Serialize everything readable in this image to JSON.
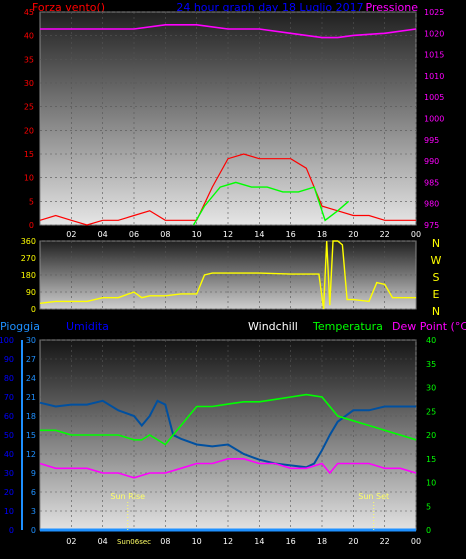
{
  "header": {
    "wind_label": "Forza vento()",
    "title": "24 hour graph day  18 Luglio 2017",
    "pressure_label": "Pressione"
  },
  "bottom_header": {
    "rain_label": "Pioggia",
    "humidity_label": "Umidita",
    "windchill_label": "Windchill",
    "temperature_label": "Temperatura",
    "dewpoint_label": "Dew Point (°C)"
  },
  "colors": {
    "wind": "#ff0000",
    "gust_avg": "#00ff00",
    "pressure": "#ff00ff",
    "direction": "#ffff00",
    "humidity": "#0050a0",
    "temperature": "#00ff00",
    "dewpoint": "#ff00ff",
    "rain": "#1e90ff",
    "axis_blue": "#0000ff"
  },
  "chart_data": [
    {
      "type": "line",
      "name": "wind-pressure",
      "x_ticks": [
        "02",
        "04",
        "06",
        "08",
        "10",
        "12",
        "14",
        "16",
        "18",
        "20",
        "22",
        "00"
      ],
      "ylim_left": [
        0,
        45
      ],
      "yticks_left": [
        0,
        5,
        10,
        15,
        20,
        25,
        30,
        35,
        40,
        45
      ],
      "ylim_right": [
        975,
        1025
      ],
      "yticks_right": [
        975,
        980,
        985,
        990,
        995,
        1000,
        1005,
        1010,
        1015,
        1020,
        1025
      ],
      "wind_speed": {
        "hours": [
          0,
          1,
          2,
          3,
          4,
          5,
          6,
          7,
          8,
          9,
          10,
          11,
          12,
          13,
          14,
          15,
          16,
          17,
          18,
          19,
          20,
          21,
          22,
          23,
          24
        ],
        "values": [
          1,
          2,
          1,
          0,
          1,
          1,
          2,
          3,
          1,
          1,
          1,
          8,
          14,
          15,
          14,
          14,
          14,
          12,
          4,
          3,
          2,
          2,
          1,
          1,
          1
        ]
      },
      "wind_avg": {
        "hours": [
          9.8,
          10.5,
          11.5,
          12.5,
          13.5,
          14.5,
          15.5,
          16.5,
          17.5,
          18.2,
          19,
          19.7
        ],
        "values": [
          0,
          4,
          8,
          9,
          8,
          8,
          7,
          7,
          8,
          1,
          3,
          5
        ]
      },
      "pressure": {
        "hours": [
          0,
          2,
          4,
          6,
          8,
          10,
          12,
          14,
          16,
          18,
          19,
          20,
          22,
          24
        ],
        "values": [
          1021,
          1021,
          1021,
          1021,
          1022,
          1022,
          1021,
          1021,
          1020,
          1019,
          1019,
          1019.5,
          1020,
          1021
        ]
      }
    },
    {
      "type": "line",
      "name": "wind-direction",
      "ylim": [
        0,
        360
      ],
      "yticks": [
        0,
        90,
        180,
        270,
        360
      ],
      "compass": [
        "N",
        "W",
        "S",
        "E",
        "N"
      ],
      "direction": {
        "hours": [
          0,
          1,
          3,
          4,
          5,
          6,
          6.5,
          7,
          8,
          9,
          10,
          10.5,
          11,
          12,
          14,
          16,
          17.8,
          18.1,
          18.3,
          18.5,
          18.7,
          19,
          19.3,
          19.6,
          20,
          21,
          21.5,
          22,
          22.5,
          23,
          24
        ],
        "values": [
          30,
          40,
          40,
          60,
          60,
          90,
          60,
          70,
          70,
          80,
          80,
          180,
          190,
          190,
          190,
          185,
          185,
          0,
          360,
          20,
          360,
          360,
          340,
          50,
          50,
          40,
          140,
          130,
          60,
          60,
          60
        ]
      }
    },
    {
      "type": "line",
      "name": "humidity-temperature",
      "x_ticks": [
        "02",
        "04",
        "06",
        "08",
        "10",
        "12",
        "14",
        "16",
        "18",
        "20",
        "22",
        "00"
      ],
      "ylim_left": [
        0,
        100
      ],
      "yticks_left": [
        0,
        10,
        20,
        30,
        40,
        50,
        60,
        70,
        80,
        90,
        100
      ],
      "ylim_rain": [
        0,
        30
      ],
      "yticks_rain": [
        0,
        3,
        6,
        9,
        12,
        15,
        18,
        21,
        24,
        27,
        30
      ],
      "ylim_right": [
        0,
        40
      ],
      "yticks_right": [
        0,
        5,
        10,
        15,
        20,
        25,
        30,
        35,
        40
      ],
      "annotations": [
        "Sun Rise",
        "Sun Set",
        "Sun06sec"
      ],
      "humidity": {
        "hours": [
          0,
          1,
          2,
          3,
          4,
          5,
          6,
          6.5,
          7,
          7.5,
          8,
          8.5,
          9,
          10,
          11,
          12,
          13,
          14,
          15,
          16,
          17,
          17.5,
          18,
          18.5,
          19,
          20,
          21,
          22,
          23,
          24
        ],
        "values": [
          67,
          65,
          66,
          66,
          68,
          63,
          60,
          55,
          60,
          68,
          66,
          50,
          48,
          45,
          44,
          45,
          40,
          37,
          35,
          34,
          33,
          35,
          42,
          50,
          57,
          63,
          63,
          65,
          65,
          65
        ]
      },
      "temperature": {
        "hours": [
          0,
          1,
          2,
          3,
          4,
          5,
          6,
          6.5,
          7,
          8,
          9,
          9.5,
          10,
          11,
          12,
          13,
          14,
          15,
          16,
          17,
          18,
          19,
          20,
          21,
          22,
          23,
          24
        ],
        "values": [
          21,
          21,
          20,
          20,
          20,
          20,
          19,
          19,
          20,
          18,
          22,
          24,
          26,
          26,
          26.5,
          27,
          27,
          27.5,
          28,
          28.5,
          28,
          24,
          23,
          22,
          21,
          20,
          19
        ]
      },
      "dewpoint": {
        "hours": [
          0,
          1,
          2,
          3,
          4,
          5,
          6,
          7,
          8,
          9,
          10,
          11,
          12,
          13,
          14,
          15,
          16,
          17,
          18,
          18.5,
          19,
          20,
          21,
          22,
          23,
          24
        ],
        "values": [
          14,
          13,
          13,
          13,
          12,
          12,
          11,
          12,
          12,
          13,
          14,
          14,
          15,
          15,
          14,
          14,
          13,
          13,
          14,
          12,
          14,
          14,
          14,
          13,
          13,
          12
        ]
      },
      "rain": {
        "hours": [
          0,
          24
        ],
        "values": [
          0,
          0
        ]
      }
    }
  ]
}
